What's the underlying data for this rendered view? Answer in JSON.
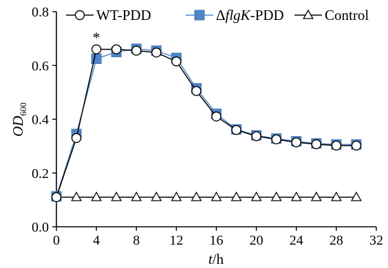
{
  "chart_data": {
    "type": "line",
    "xlabel": "t/h",
    "ylabel": "OD600",
    "xlim": [
      0,
      32
    ],
    "ylim": [
      0,
      0.8
    ],
    "xticks": [
      "0",
      "4",
      "8",
      "12",
      "16",
      "20",
      "24",
      "28",
      "32"
    ],
    "yticks": [
      "0.0",
      "0.2",
      "0.4",
      "0.6",
      "0.8"
    ],
    "legend_position": "top",
    "annotations": [
      {
        "text": "*",
        "x": 4,
        "y": 0.66
      }
    ],
    "series": [
      {
        "name": "WT-PDD",
        "marker": "circle",
        "color": "#000000",
        "x": [
          0,
          2,
          4,
          6,
          8,
          10,
          12,
          14,
          16,
          18,
          20,
          22,
          24,
          26,
          28,
          30
        ],
        "y": [
          0.11,
          0.33,
          0.66,
          0.66,
          0.655,
          0.648,
          0.615,
          0.505,
          0.41,
          0.36,
          0.337,
          0.325,
          0.314,
          0.307,
          0.302,
          0.302
        ],
        "errors": [
          0.005,
          0.008,
          0.008,
          0.005,
          0.008,
          0.015,
          0.008,
          0.01,
          0.008,
          0.005,
          0.005,
          0.005,
          0.004,
          0.004,
          0.004,
          0.004
        ]
      },
      {
        "name": "ΔflgK-PDD",
        "marker": "square",
        "color": "#4f86c6",
        "x": [
          0,
          2,
          4,
          6,
          8,
          10,
          12,
          14,
          16,
          18,
          20,
          22,
          24,
          26,
          28,
          30
        ],
        "y": [
          0.113,
          0.345,
          0.625,
          0.65,
          0.662,
          0.655,
          0.628,
          0.515,
          0.42,
          0.362,
          0.34,
          0.328,
          0.318,
          0.31,
          0.306,
          0.306
        ]
      },
      {
        "name": "Control",
        "marker": "triangle",
        "color": "#000000",
        "x": [
          0,
          2,
          4,
          6,
          8,
          10,
          12,
          14,
          16,
          18,
          20,
          22,
          24,
          26,
          28,
          30
        ],
        "y": [
          0.11,
          0.11,
          0.11,
          0.11,
          0.11,
          0.11,
          0.11,
          0.11,
          0.11,
          0.11,
          0.11,
          0.11,
          0.11,
          0.11,
          0.11,
          0.11
        ]
      }
    ]
  }
}
